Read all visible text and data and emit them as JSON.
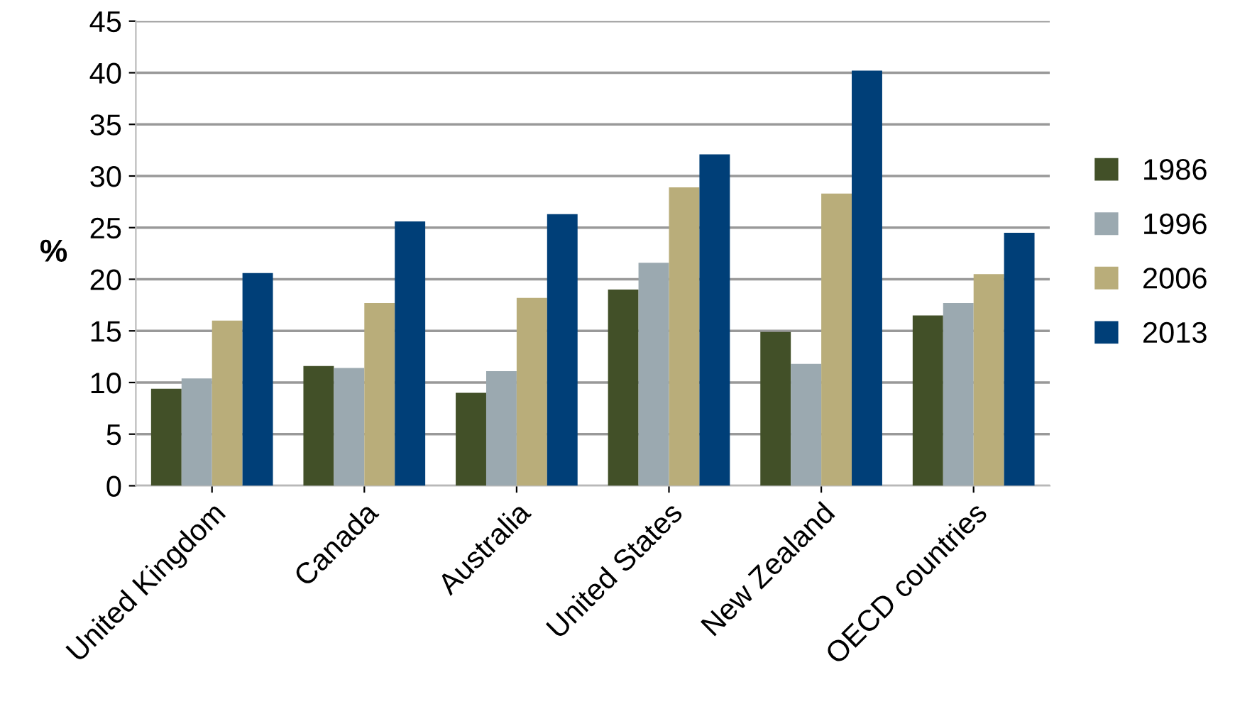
{
  "chart_data": {
    "type": "bar",
    "ylabel": "%",
    "categories": [
      "United Kingdom",
      "Canada",
      "Australia",
      "United States",
      "New Zealand",
      "OECD countries"
    ],
    "series": [
      {
        "name": "1986",
        "color": "#425028",
        "values": [
          9.4,
          11.6,
          9.0,
          19.0,
          14.9,
          16.5
        ]
      },
      {
        "name": "1996",
        "color": "#9ba9b0",
        "values": [
          10.4,
          11.4,
          11.1,
          21.6,
          11.8,
          17.7
        ]
      },
      {
        "name": "2006",
        "color": "#b9ad7a",
        "values": [
          16.0,
          17.7,
          18.2,
          28.9,
          28.3,
          20.5
        ]
      },
      {
        "name": "2013",
        "color": "#003f78",
        "values": [
          20.6,
          25.6,
          26.3,
          32.1,
          40.2,
          24.5
        ]
      }
    ],
    "ylim": [
      0,
      45
    ],
    "yticks": [
      0,
      5,
      10,
      15,
      20,
      25,
      30,
      35,
      40,
      45
    ],
    "grid": "y",
    "legend": "right"
  }
}
